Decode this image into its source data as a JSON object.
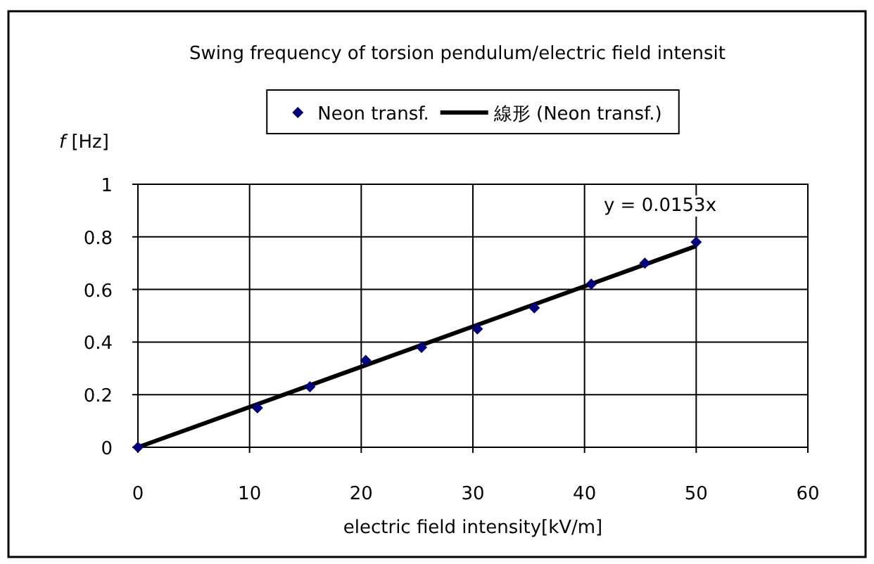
{
  "chart_data": {
    "type": "scatter",
    "title": "Swing frequency of torsion pendulum/electric field intensit",
    "xlabel": "electric field intensity[kV/m]",
    "ylabel": "*f* [Hz]",
    "annotations": [
      "y = 0.0153x"
    ],
    "series": [
      {
        "name": "Neon transf.",
        "marker": "diamond",
        "color": "#000080",
        "x": [
          0,
          10.7,
          15.4,
          20.4,
          25.4,
          30.4,
          35.5,
          40.6,
          45.4,
          50
        ],
        "values": [
          0,
          0.15,
          0.23,
          0.33,
          0.38,
          0.45,
          0.53,
          0.62,
          0.7,
          0.78
        ]
      },
      {
        "name": "線形 (Neon transf.)",
        "type": "line",
        "color": "#000000",
        "x": [
          0,
          50
        ],
        "values": [
          0,
          0.765
        ]
      }
    ],
    "xlim": [
      0,
      60
    ],
    "ylim": [
      0,
      1
    ],
    "xticks": [
      0,
      10,
      20,
      30,
      40,
      50,
      60
    ],
    "yticks": [
      0,
      0.2,
      0.4,
      0.6,
      0.8,
      1
    ],
    "grid": true,
    "legend": "top"
  }
}
